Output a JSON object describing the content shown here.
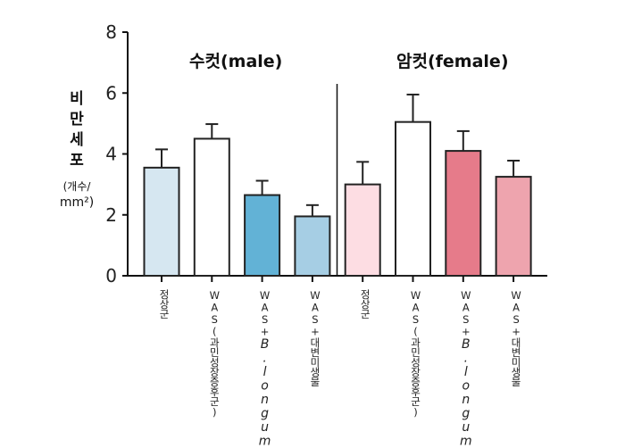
{
  "chart_data": {
    "type": "bar",
    "ylabel": [
      "비",
      "만",
      "세",
      "포"
    ],
    "ylabel_unit": [
      "(개수/",
      "mm²)"
    ],
    "ylim": [
      0,
      8
    ],
    "yticks": [
      "0",
      "2",
      "4",
      "6",
      "8"
    ],
    "grid": false,
    "groups": [
      "수컷(male)",
      "암컷(female)"
    ],
    "categories": [
      {
        "text": "정상군",
        "italic": ""
      },
      {
        "text": "WAS(과민성장증후군)",
        "italic": ""
      },
      {
        "text": "WAS+",
        "italic": "B.longum"
      },
      {
        "text": "WAS+대변미생물",
        "italic": ""
      },
      {
        "text": "정상군",
        "italic": ""
      },
      {
        "text": "WAS(과민성장증후군)",
        "italic": ""
      },
      {
        "text": "WAS+",
        "italic": "B.longum"
      },
      {
        "text": "WAS+대변미생물",
        "italic": ""
      }
    ],
    "values": [
      3.55,
      4.5,
      2.65,
      1.95,
      3.0,
      5.05,
      4.1,
      3.25
    ],
    "error_upper": [
      4.15,
      4.98,
      3.12,
      2.32,
      3.74,
      5.95,
      4.75,
      3.78
    ],
    "colors": [
      "#d6e7f1",
      "#ffffff",
      "#62b2d6",
      "#a6cee4",
      "#fddde3",
      "#ffffff",
      "#e67b8a",
      "#eea4ae"
    ]
  }
}
